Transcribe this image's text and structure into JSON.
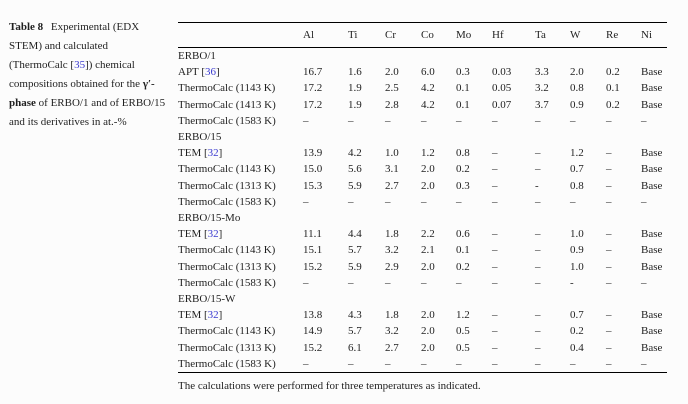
{
  "colors": {
    "background": "#fcfcfc",
    "text": "#1f1f1f",
    "citation": "#3b3bd0"
  },
  "caption": {
    "label": "Table 8",
    "text_1": " Experimental (EDX STEM) and calculated (ThermoCalc [",
    "ref_1": "35",
    "text_2": "]) chemical compositions obtained for the ",
    "phase": "γ′-phase",
    "text_3": " of ERBO/1 and of ERBO/15 and its derivatives in at.-%"
  },
  "table": {
    "columns": [
      "Al",
      "Ti",
      "Cr",
      "Co",
      "Mo",
      "Hf",
      "Ta",
      "W",
      "Re",
      "Ni"
    ],
    "rows": [
      {
        "type": "section",
        "label": "ERBO/1"
      },
      {
        "type": "data",
        "label_prefix": "APT [",
        "ref": "36",
        "label_suffix": "]",
        "values": [
          "16.7",
          "1.6",
          "2.0",
          "6.0",
          "0.3",
          "0.03",
          "3.3",
          "2.0",
          "0.2",
          "Base"
        ]
      },
      {
        "type": "data",
        "label": "ThermoCalc (1143 K)",
        "values": [
          "17.2",
          "1.9",
          "2.5",
          "4.2",
          "0.1",
          "0.05",
          "3.2",
          "0.8",
          "0.1",
          "Base"
        ]
      },
      {
        "type": "data",
        "label": "ThermoCalc (1413 K)",
        "values": [
          "17.2",
          "1.9",
          "2.8",
          "4.2",
          "0.1",
          "0.07",
          "3.7",
          "0.9",
          "0.2",
          "Base"
        ]
      },
      {
        "type": "data",
        "label": "ThermoCalc (1583 K)",
        "values": [
          "–",
          "–",
          "–",
          "–",
          "–",
          "–",
          "–",
          "–",
          "–",
          "–"
        ]
      },
      {
        "type": "section",
        "label": "ERBO/15"
      },
      {
        "type": "data",
        "label_prefix": "TEM [",
        "ref": "32",
        "label_suffix": "]",
        "values": [
          "13.9",
          "4.2",
          "1.0",
          "1.2",
          "0.8",
          "–",
          "–",
          "1.2",
          "–",
          "Base"
        ]
      },
      {
        "type": "data",
        "label": "ThermoCalc (1143 K)",
        "values": [
          "15.0",
          "5.6",
          "3.1",
          "2.0",
          "0.2",
          "–",
          "–",
          "0.7",
          "–",
          "Base"
        ]
      },
      {
        "type": "data",
        "label": "ThermoCalc (1313 K)",
        "values": [
          "15.3",
          "5.9",
          "2.7",
          "2.0",
          "0.3",
          "–",
          "-",
          "0.8",
          "–",
          "Base"
        ]
      },
      {
        "type": "data",
        "label": "ThermoCalc (1583 K)",
        "values": [
          "–",
          "–",
          "–",
          "–",
          "–",
          "–",
          "–",
          "–",
          "–",
          "–"
        ]
      },
      {
        "type": "section",
        "label": "ERBO/15-Mo"
      },
      {
        "type": "data",
        "label_prefix": "TEM [",
        "ref": "32",
        "label_suffix": "]",
        "values": [
          "11.1",
          "4.4",
          "1.8",
          "2.2",
          "0.6",
          "–",
          "–",
          "1.0",
          "–",
          "Base"
        ]
      },
      {
        "type": "data",
        "label": "ThermoCalc (1143 K)",
        "values": [
          "15.1",
          "5.7",
          "3.2",
          "2.1",
          "0.1",
          "–",
          "–",
          "0.9",
          "–",
          "Base"
        ]
      },
      {
        "type": "data",
        "label": "ThermoCalc (1313 K)",
        "values": [
          "15.2",
          "5.9",
          "2.9",
          "2.0",
          "0.2",
          "–",
          "–",
          "1.0",
          "–",
          "Base"
        ]
      },
      {
        "type": "data",
        "label": "ThermoCalc (1583 K)",
        "values": [
          "–",
          "–",
          "–",
          "–",
          "–",
          "–",
          "–",
          "-",
          "–",
          "–"
        ]
      },
      {
        "type": "section",
        "label": "ERBO/15-W"
      },
      {
        "type": "data",
        "label_prefix": "TEM [",
        "ref": "32",
        "label_suffix": "]",
        "values": [
          "13.8",
          "4.3",
          "1.8",
          "2.0",
          "1.2",
          "–",
          "–",
          "0.7",
          "–",
          "Base"
        ]
      },
      {
        "type": "data",
        "label": "ThermoCalc (1143 K)",
        "values": [
          "14.9",
          "5.7",
          "3.2",
          "2.0",
          "0.5",
          "–",
          "–",
          "0.2",
          "–",
          "Base"
        ]
      },
      {
        "type": "data",
        "label": "ThermoCalc (1313 K)",
        "values": [
          "15.2",
          "6.1",
          "2.7",
          "2.0",
          "0.5",
          "–",
          "–",
          "0.4",
          "–",
          "Base"
        ]
      },
      {
        "type": "data",
        "label": "ThermoCalc (1583 K)",
        "values": [
          "–",
          "–",
          "–",
          "–",
          "–",
          "–",
          "–",
          "–",
          "–",
          "–"
        ]
      }
    ],
    "footnote": "The calculations were performed for three temperatures as indicated."
  }
}
